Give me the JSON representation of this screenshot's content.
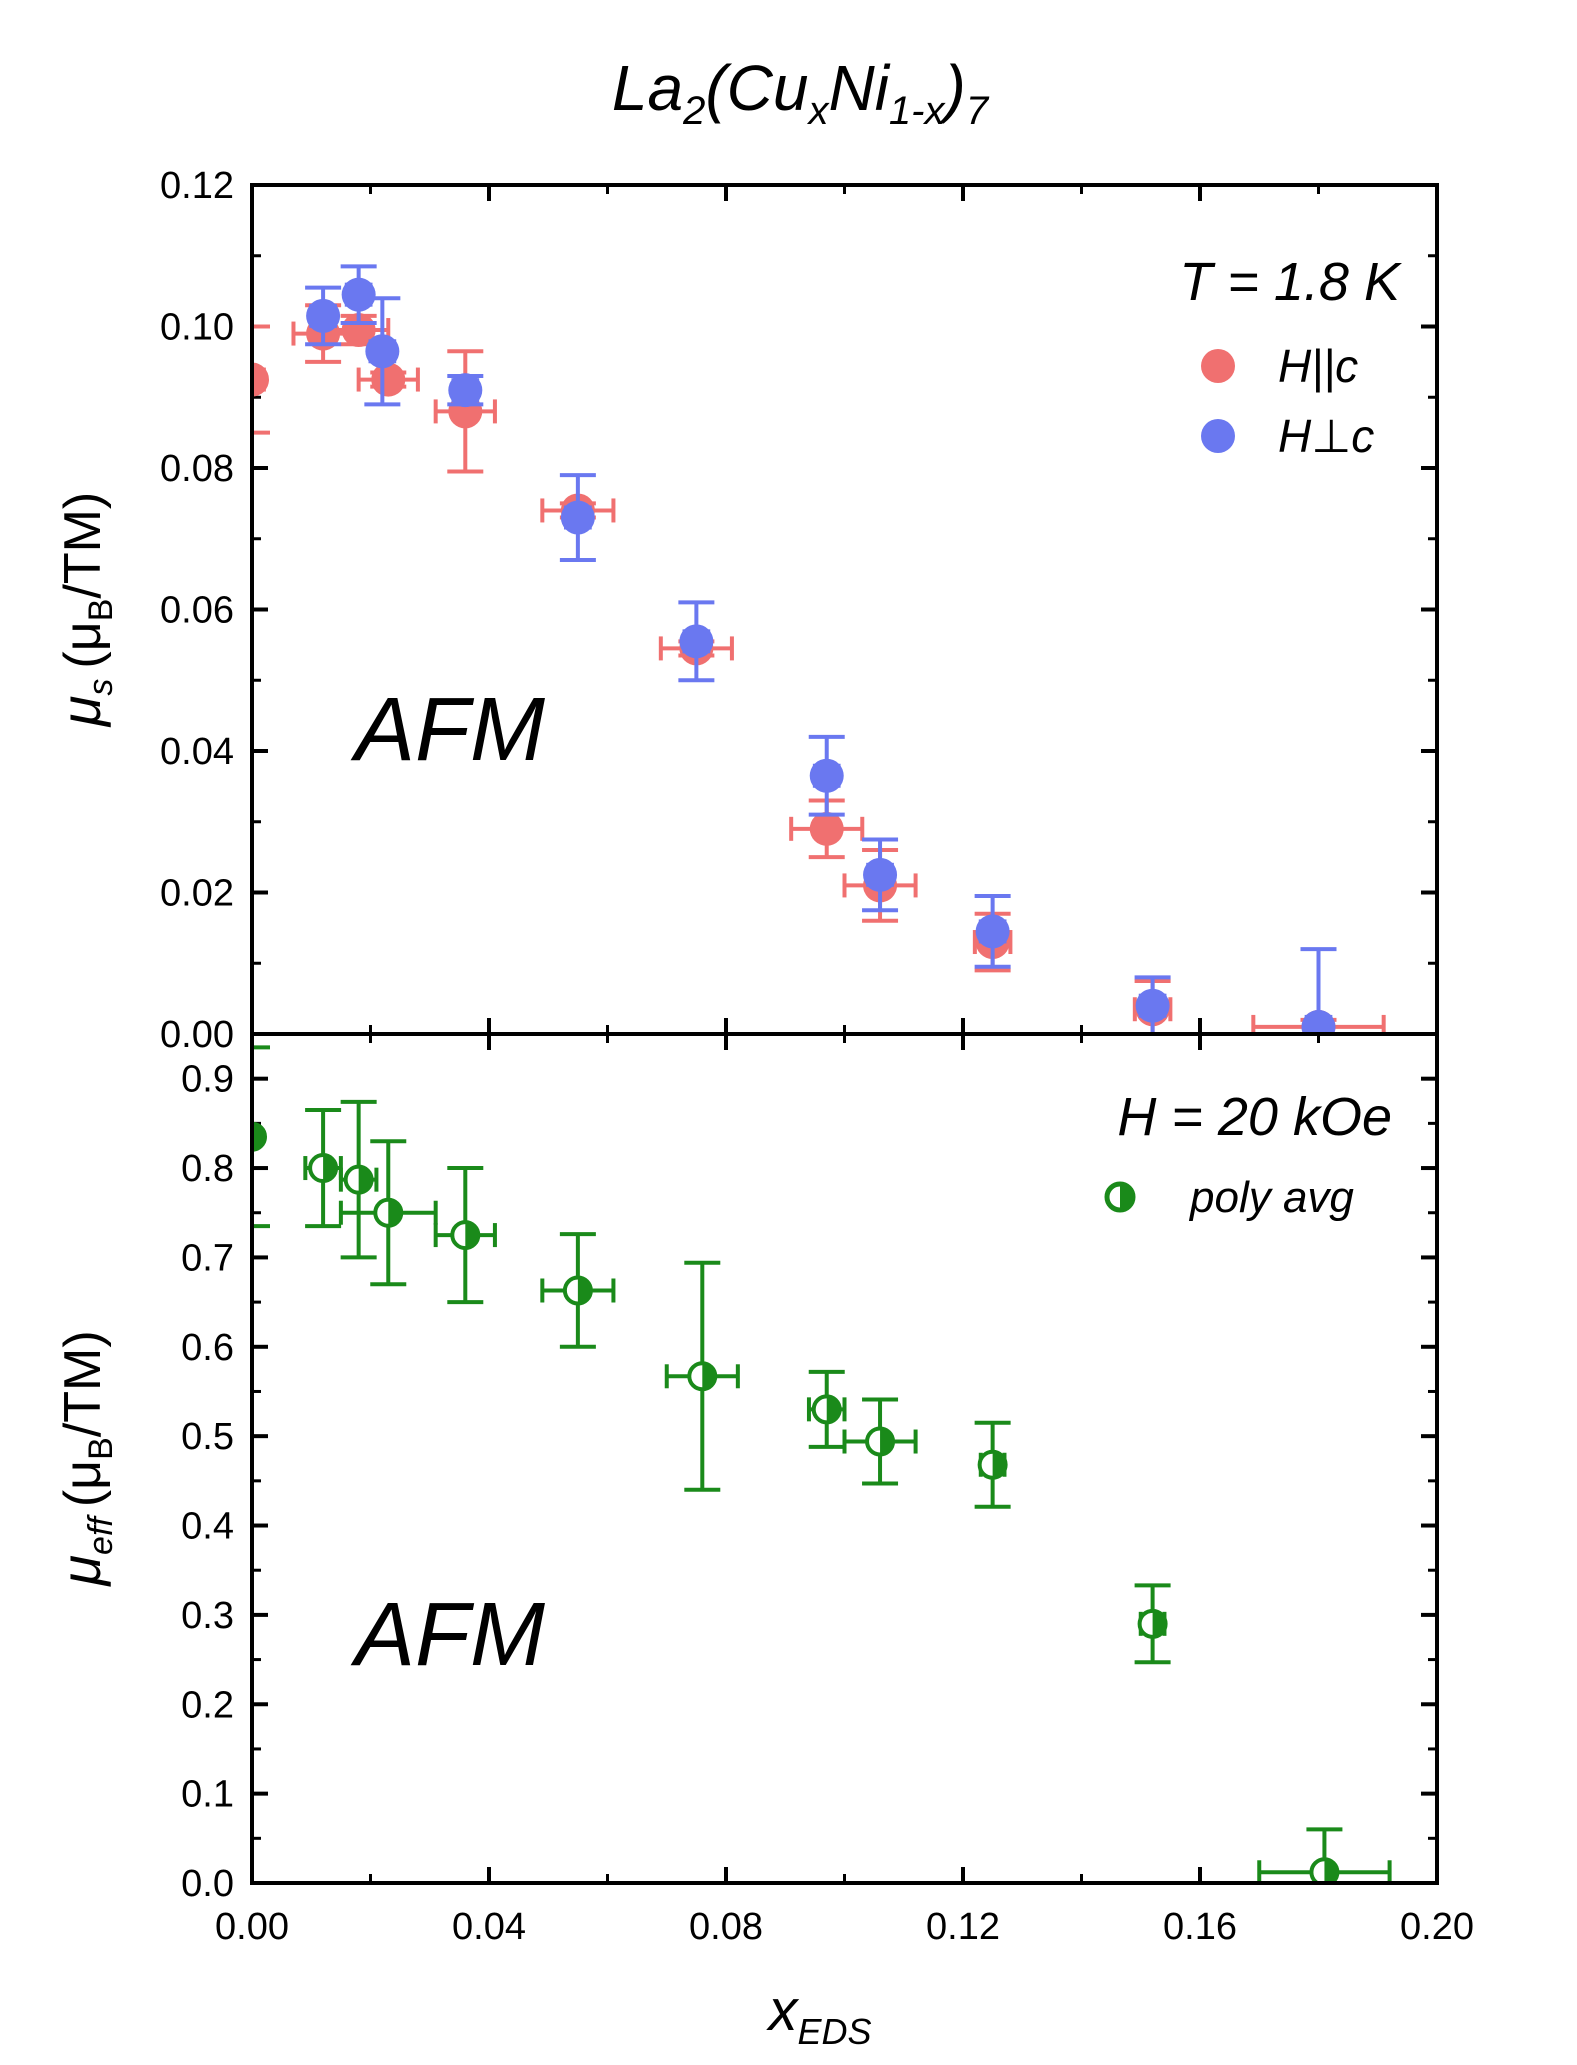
{
  "figure_title": {
    "base": "La",
    "sub1": "2",
    "open": "(Cu",
    "sub2": "x",
    "mid": "Ni",
    "sub3": "1-x",
    "close": ")",
    "sub4": "7"
  },
  "colors": {
    "parallel": "#f07070",
    "perpendicular": "#6a78f0",
    "poly": "#1a8a1a",
    "axis": "#000000"
  },
  "chart_data": [
    {
      "type": "scatter",
      "panel": "top",
      "ylabel": {
        "symbol": "μ",
        "symbol_sub": "s",
        "unit_open": "(μ",
        "unit_sub": "B",
        "unit_close": "/TM)"
      },
      "annotation": "T = 1.8 K",
      "region_label": "AFM",
      "xlim": [
        0,
        0.2
      ],
      "ylim": [
        0,
        0.12
      ],
      "yticks": [
        "0.00",
        "0.02",
        "0.04",
        "0.06",
        "0.08",
        "0.10",
        "0.12"
      ],
      "ytick_values": [
        0,
        0.02,
        0.04,
        0.06,
        0.08,
        0.1,
        0.12
      ],
      "legend": {
        "position": "top-right",
        "entries": [
          "H||c",
          "H⊥c"
        ]
      },
      "series": [
        {
          "name": "H||c",
          "color": "#f07070",
          "x": [
            0.0,
            0.012,
            0.018,
            0.023,
            0.036,
            0.055,
            0.075,
            0.097,
            0.106,
            0.125,
            0.152,
            0.18
          ],
          "y": [
            0.0925,
            0.099,
            0.0995,
            0.0925,
            0.088,
            0.074,
            0.0545,
            0.029,
            0.021,
            0.013,
            0.0035,
            0.001
          ],
          "xerr": [
            0.002,
            0.005,
            0.005,
            0.005,
            0.005,
            0.006,
            0.006,
            0.006,
            0.006,
            0.003,
            0.003,
            0.011
          ],
          "yerr": [
            0.0075,
            0.004,
            0.002,
            0.001,
            0.0085,
            0.001,
            0.001,
            0.004,
            0.005,
            0.004,
            0.004,
            0.001
          ]
        },
        {
          "name": "H⊥c",
          "color": "#6a78f0",
          "x": [
            0.012,
            0.018,
            0.022,
            0.036,
            0.055,
            0.075,
            0.097,
            0.106,
            0.125,
            0.152,
            0.18
          ],
          "y": [
            0.1015,
            0.1045,
            0.0965,
            0.091,
            0.073,
            0.0555,
            0.0365,
            0.0225,
            0.0145,
            0.004,
            0.001
          ],
          "xerr": [
            0.002,
            0.002,
            0.002,
            0.002,
            0.002,
            0.002,
            0.002,
            0.002,
            0.002,
            0.002,
            0.002
          ],
          "yerr": [
            0.004,
            0.004,
            0.0075,
            0.002,
            0.006,
            0.0055,
            0.0055,
            0.005,
            0.005,
            0.004,
            0.011
          ]
        }
      ]
    },
    {
      "type": "scatter",
      "panel": "bottom",
      "ylabel": {
        "symbol": "μ",
        "symbol_sub": "eff",
        "unit_open": "(μ",
        "unit_sub": "B",
        "unit_close": "/TM)"
      },
      "xlabel": {
        "base": "x",
        "sub": "EDS"
      },
      "annotation": "H = 20 kOe",
      "region_label": "AFM",
      "xlim": [
        0,
        0.2
      ],
      "ylim": [
        0,
        0.95
      ],
      "xticks": [
        "0.00",
        "0.04",
        "0.08",
        "0.12",
        "0.16",
        "0.20"
      ],
      "xtick_values": [
        0,
        0.04,
        0.08,
        0.12,
        0.16,
        0.2
      ],
      "yticks": [
        "0.0",
        "0.1",
        "0.2",
        "0.3",
        "0.4",
        "0.5",
        "0.6",
        "0.7",
        "0.8",
        "0.9"
      ],
      "ytick_values": [
        0,
        0.1,
        0.2,
        0.3,
        0.4,
        0.5,
        0.6,
        0.7,
        0.8,
        0.9
      ],
      "legend": {
        "position": "top-right",
        "entries": [
          "poly avg"
        ]
      },
      "series": [
        {
          "name": "poly avg",
          "color": "#1a8a1a",
          "x": [
            0.0,
            0.012,
            0.018,
            0.023,
            0.036,
            0.055,
            0.076,
            0.097,
            0.106,
            0.125,
            0.152,
            0.181
          ],
          "y": [
            0.835,
            0.8,
            0.787,
            0.75,
            0.725,
            0.663,
            0.567,
            0.53,
            0.494,
            0.468,
            0.29,
            0.012
          ],
          "xerr": [
            0.001,
            0.003,
            0.003,
            0.008,
            0.005,
            0.006,
            0.006,
            0.003,
            0.006,
            0.002,
            0.002,
            0.011
          ],
          "yerr": [
            0.1,
            0.065,
            0.087,
            0.08,
            0.075,
            0.063,
            0.127,
            0.042,
            0.047,
            0.047,
            0.043,
            0.048
          ]
        }
      ]
    }
  ]
}
